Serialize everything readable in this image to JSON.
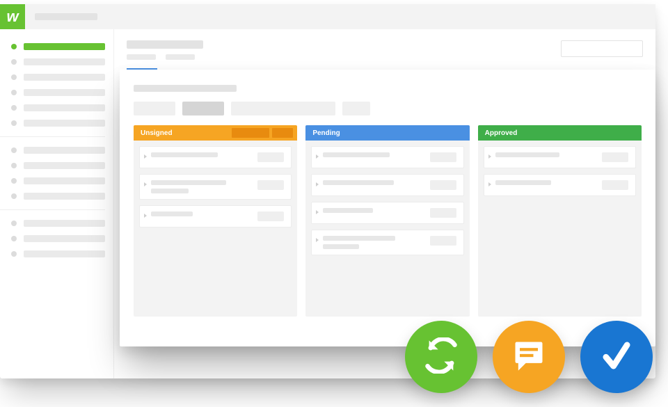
{
  "brand": {
    "logo_letter": "w",
    "logo_bg": "#67c232"
  },
  "colors": {
    "green": "#67c232",
    "orange": "#f6a523",
    "orange_dark": "#e88b0f",
    "blue": "#4a90e2",
    "deep_blue": "#1976d2",
    "grey_panel": "#f3f3f3",
    "grey_line": "#e6e6e6",
    "white": "#ffffff"
  },
  "sidebar": {
    "active_index": 0,
    "group1_count": 6,
    "group2_count": 4,
    "group3_count": 3
  },
  "kanban": {
    "columns": [
      {
        "label": "Unsigned",
        "header_bg": "#f6a523",
        "badges": [
          {
            "w": 54,
            "bg": "#e88b0f"
          },
          {
            "w": 30,
            "bg": "#e88b0f"
          }
        ],
        "cards": [
          {
            "l1": 96,
            "l2": 0
          },
          {
            "l1": 108,
            "l2": 54
          },
          {
            "l1": 60,
            "l2": 0
          }
        ]
      },
      {
        "label": "Pending",
        "header_bg": "#4a90e2",
        "badges": [],
        "cards": [
          {
            "l1": 96,
            "l2": 0
          },
          {
            "l1": 102,
            "l2": 0
          },
          {
            "l1": 72,
            "l2": 0
          },
          {
            "l1": 104,
            "l2": 52
          }
        ]
      },
      {
        "label": "Approved",
        "header_bg": "#3fae49",
        "badges": [],
        "cards": [
          {
            "l1": 92,
            "l2": 0
          },
          {
            "l1": 80,
            "l2": 0
          }
        ]
      }
    ]
  },
  "action_circles": [
    {
      "name": "sync",
      "bg": "#67c232",
      "icon": "refresh"
    },
    {
      "name": "comment",
      "bg": "#f6a523",
      "icon": "chat"
    },
    {
      "name": "approve",
      "bg": "#1976d2",
      "icon": "check"
    }
  ]
}
